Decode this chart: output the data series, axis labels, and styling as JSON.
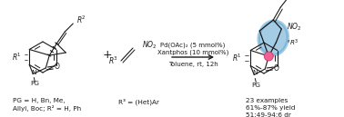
{
  "background_color": "#ffffff",
  "figure_width": 3.78,
  "figure_height": 1.29,
  "dpi": 100,
  "text_color": "#1a1a1a",
  "conditions_lines": [
    "Pd(OAc)₂ (5 mmol%)",
    "Xantphos (10 mmol%)",
    "Toluene, rt, 12h"
  ],
  "label1_lines": [
    "PG = H, Bn, Me,",
    "Allyl, Boc; R² = H, Ph"
  ],
  "label2_text": "R³ = (Het)Ar",
  "label3_lines": [
    "23 examples",
    "61%-87% yield",
    "51:49-94:6 dr"
  ],
  "blue_highlight": "#5ba3d0",
  "pink_dot": "#f06090",
  "blue_alpha": 0.55
}
